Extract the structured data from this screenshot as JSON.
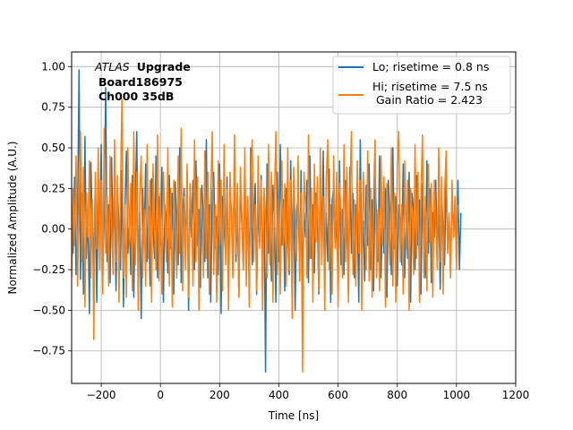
{
  "chart_data": {
    "type": "line",
    "title": "",
    "xlabel": "Time [ns]",
    "ylabel": "Normalized Amplitude (A.U.)",
    "xlim": [
      -300,
      1200
    ],
    "ylim": [
      -0.95,
      1.09
    ],
    "xticks": [
      -200,
      0,
      200,
      400,
      600,
      800,
      1000,
      1200
    ],
    "yticks": [
      -0.75,
      -0.5,
      -0.25,
      0.0,
      0.25,
      0.5,
      0.75,
      1.0
    ],
    "xtick_labels": [
      "−200",
      "0",
      "200",
      "400",
      "600",
      "800",
      "1000",
      "1200"
    ],
    "ytick_labels": [
      "−0.75",
      "−0.50",
      "−0.25",
      "0.00",
      "0.25",
      "0.50",
      "0.75",
      "1.00"
    ],
    "grid": true,
    "legend": "top-right",
    "annotation": {
      "atlas": "ATLAS",
      "upgrade": "Upgrade",
      "board": "Board186975",
      "channel": "Ch000 35dB"
    },
    "series": [
      {
        "name": "Lo; risetime = 0.8 ns",
        "color": "#1f77b4",
        "x_start": -300,
        "x_step": 5,
        "values": [
          0.1,
          -0.15,
          0.32,
          -0.28,
          0.05,
          0.98,
          -0.31,
          0.22,
          -0.4,
          0.57,
          -0.18,
          0.12,
          -0.52,
          0.41,
          0.03,
          -0.22,
          0.3,
          -0.45,
          0.18,
          -0.05,
          0.52,
          -0.3,
          0.08,
          0.87,
          -0.2,
          0.15,
          -0.33,
          0.44,
          -0.1,
          0.2,
          -0.38,
          0.27,
          0.0,
          -0.25,
          0.36,
          -0.48,
          0.12,
          0.48,
          -0.15,
          0.05,
          -0.28,
          0.33,
          -0.42,
          0.18,
          0.6,
          -0.3,
          0.1,
          -0.55,
          0.25,
          -0.08,
          0.4,
          -0.2,
          0.14,
          -0.35,
          0.31,
          0.02,
          -0.18,
          0.45,
          -0.3,
          0.2,
          -0.1,
          0.38,
          -0.45,
          0.15,
          0.05,
          -0.27,
          0.33,
          -0.12,
          0.22,
          -0.4,
          0.29,
          0.0,
          -0.22,
          0.5,
          -0.33,
          0.1,
          0.25,
          -0.15,
          0.35,
          -0.5,
          0.18,
          -0.05,
          0.3,
          -0.25,
          0.42,
          -0.1,
          0.12,
          -0.36,
          0.27,
          0.05,
          -0.2,
          0.55,
          -0.3,
          0.15,
          -0.45,
          0.22,
          0.35,
          -0.12,
          0.08,
          -0.28,
          0.4,
          -0.52,
          0.2,
          0.0,
          -0.15,
          0.32,
          -0.38,
          0.25,
          0.1,
          -0.3,
          0.45,
          -0.2,
          0.12,
          -0.42,
          0.3,
          0.03,
          -0.25,
          0.38,
          -0.1,
          0.18,
          -0.35,
          0.5,
          -0.22,
          0.07,
          0.28,
          -0.4,
          0.15,
          -0.08,
          0.33,
          -0.3,
          0.2,
          -0.88,
          0.4,
          -0.15,
          0.1,
          -0.32,
          0.27,
          0.05,
          -0.45,
          0.35,
          -0.2,
          0.52,
          -0.1,
          0.18,
          -0.38,
          0.25,
          0.0,
          -0.28,
          0.42,
          -0.15,
          0.3,
          -0.5,
          0.12,
          0.2,
          -0.25,
          0.36,
          -0.42,
          0.1,
          -0.05,
          0.3,
          -0.33,
          0.45,
          -0.18,
          0.15,
          -0.27,
          0.22,
          0.05,
          -0.4,
          0.33,
          -0.12,
          0.48,
          -0.3,
          0.1,
          -0.2,
          0.37,
          -0.45,
          0.18,
          0.25,
          -0.1,
          0.05,
          -0.35,
          0.42,
          -0.22,
          0.12,
          -0.28,
          0.3,
          0.0,
          -0.4,
          0.38,
          -0.15,
          0.22,
          -0.3,
          0.15,
          0.1,
          -0.45,
          0.55,
          -0.2,
          0.05,
          -0.32,
          0.27,
          -0.1,
          0.4,
          -0.25,
          0.18,
          -0.38,
          0.33,
          0.08,
          -0.2,
          0.45,
          -0.3,
          0.12,
          -0.15,
          0.25,
          -0.42,
          0.3,
          0.0,
          -0.28,
          0.5,
          -0.12,
          0.2,
          -0.35,
          0.15,
          0.05,
          -0.22,
          0.4,
          -0.3,
          0.1,
          -0.18,
          0.35,
          -0.45,
          0.22,
          0.12,
          -0.25,
          0.33,
          -0.1,
          0.18,
          -0.4,
          0.28,
          0.02,
          -0.3,
          0.42,
          -0.15,
          0.25,
          -0.33,
          0.1,
          -0.05,
          0.3,
          -0.2,
          0.15,
          -0.37,
          0.2,
          0.0,
          -0.22,
          0.36,
          -0.12,
          0.08,
          -0.28,
          0.25,
          -0.05,
          0.12,
          -0.18,
          0.3,
          -0.25,
          0.1
        ]
      },
      {
        "name": "Hi; risetime = 7.5 ns\n Gain Ratio = 2.423",
        "color": "#ff7f0e",
        "x_start": -300,
        "x_step": 5,
        "values": [
          -0.3,
          0.25,
          -0.1,
          0.45,
          -0.35,
          0.15,
          0.6,
          -0.2,
          0.38,
          -0.48,
          0.22,
          -0.05,
          0.42,
          -0.3,
          0.18,
          -0.68,
          0.35,
          -0.12,
          0.5,
          -0.25,
          0.3,
          -0.4,
          0.62,
          -0.15,
          0.2,
          -0.35,
          0.45,
          0.05,
          -0.28,
          0.55,
          -0.2,
          0.33,
          -0.45,
          0.25,
          0.8,
          -0.3,
          0.15,
          -0.42,
          0.5,
          -0.1,
          0.28,
          -0.38,
          0.6,
          -0.22,
          0.35,
          -0.5,
          0.2,
          0.45,
          -0.3,
          0.12,
          -0.35,
          0.52,
          -0.18,
          0.3,
          -0.45,
          0.4,
          0.0,
          -0.25,
          0.58,
          -0.32,
          0.22,
          -0.4,
          0.35,
          0.1,
          -0.2,
          0.5,
          -0.35,
          0.25,
          -0.48,
          0.3,
          0.05,
          -0.3,
          0.45,
          -0.15,
          0.62,
          -0.38,
          0.2,
          -0.25,
          0.4,
          -0.42,
          0.28,
          0.08,
          -0.35,
          0.55,
          -0.2,
          0.32,
          -0.5,
          0.25,
          0.12,
          -0.3,
          0.48,
          -0.18,
          0.35,
          -0.4,
          0.2,
          0.6,
          -0.28,
          0.15,
          -0.45,
          0.42,
          -0.1,
          0.3,
          -0.38,
          0.52,
          -0.22,
          0.25,
          -0.5,
          0.35,
          0.05,
          -0.3,
          0.58,
          -0.15,
          0.28,
          -0.42,
          0.38,
          0.1,
          -0.25,
          0.5,
          -0.35,
          0.2,
          -0.48,
          0.32,
          0.55,
          -0.2,
          0.15,
          -0.38,
          0.45,
          -0.12,
          0.3,
          -0.5,
          0.25,
          0.08,
          -0.3,
          0.52,
          -0.22,
          0.35,
          -0.45,
          0.2,
          0.6,
          -0.28,
          0.18,
          -0.4,
          0.42,
          -0.1,
          0.28,
          -0.35,
          0.5,
          -0.25,
          0.3,
          -0.55,
          0.38,
          0.05,
          -0.2,
          0.45,
          -0.32,
          0.22,
          -0.88,
          0.35,
          0.15,
          -0.3,
          0.58,
          -0.18,
          0.25,
          -0.45,
          0.4,
          -0.08,
          0.32,
          -0.38,
          0.5,
          -0.22,
          0.2,
          -0.5,
          0.3,
          0.55,
          -0.25,
          0.15,
          -0.4,
          0.45,
          -0.12,
          0.35,
          -0.48,
          0.28,
          0.1,
          -0.3,
          0.52,
          -0.2,
          0.38,
          -0.45,
          0.22,
          0.6,
          -0.28,
          0.18,
          -0.35,
          0.42,
          -0.15,
          0.3,
          -0.5,
          0.35,
          0.05,
          -0.25,
          0.48,
          -0.32,
          0.25,
          -0.42,
          0.2,
          0.55,
          -0.3,
          0.12,
          -0.38,
          0.45,
          -0.1,
          0.32,
          -0.48,
          0.28,
          0.08,
          -0.22,
          0.5,
          -0.35,
          0.22,
          -0.45,
          0.38,
          0.6,
          -0.2,
          0.15,
          -0.4,
          0.42,
          -0.12,
          0.3,
          -0.5,
          0.25,
          0.1,
          -0.28,
          0.52,
          -0.18,
          0.35,
          -0.45,
          0.22,
          0.58,
          -0.3,
          0.2,
          -0.38,
          0.4,
          -0.08,
          0.28,
          -0.42,
          0.3,
          0.05,
          -0.25,
          0.5,
          -0.2,
          0.32,
          -0.4,
          0.22,
          0.48,
          -0.15,
          0.1,
          -0.3,
          0.3,
          -0.05,
          0.2,
          -0.25,
          0.15
        ]
      }
    ]
  }
}
